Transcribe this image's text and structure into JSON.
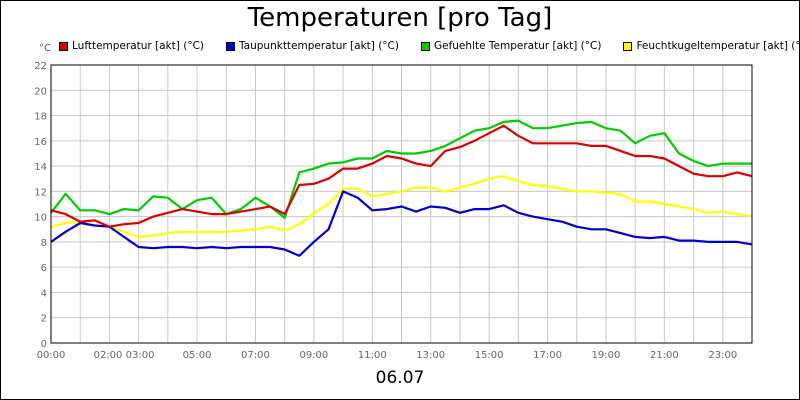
{
  "chart_data": {
    "type": "line",
    "title": "Temperaturen [pro Tag]",
    "unit": "°C",
    "xlabel": "06.07",
    "ylim": [
      0,
      22
    ],
    "y_ticks": [
      0,
      2,
      4,
      6,
      8,
      10,
      12,
      14,
      16,
      18,
      20,
      22
    ],
    "xlim_hours": [
      0,
      24
    ],
    "x_ticks": [
      "00:00",
      "02:00",
      "03:00",
      "05:00",
      "07:00",
      "09:00",
      "11:00",
      "13:00",
      "15:00",
      "17:00",
      "19:00",
      "21:00",
      "23:00"
    ],
    "grid": true,
    "legend_position": "top",
    "series": [
      {
        "name": "Lufttemperatur [akt] (°C)",
        "color": "#dd0000",
        "x": [
          0,
          0.5,
          1,
          1.5,
          2,
          2.5,
          3,
          3.5,
          4,
          4.5,
          5,
          5.5,
          6,
          6.5,
          7,
          7.5,
          8,
          8.5,
          9,
          9.5,
          10,
          10.5,
          11,
          11.5,
          12,
          12.5,
          13,
          13.5,
          14,
          14.5,
          15,
          15.5,
          16,
          16.5,
          17,
          17.5,
          18,
          18.5,
          19,
          19.5,
          20,
          20.5,
          21,
          21.5,
          22,
          22.5,
          23,
          23.5,
          24
        ],
        "values": [
          10.5,
          10.2,
          9.6,
          9.7,
          9.2,
          9.4,
          9.5,
          10.0,
          10.3,
          10.6,
          10.4,
          10.2,
          10.2,
          10.4,
          10.6,
          10.8,
          10.2,
          12.5,
          12.6,
          13.0,
          13.8,
          13.8,
          14.2,
          14.8,
          14.6,
          14.2,
          14.0,
          15.2,
          15.5,
          16.0,
          16.6,
          17.2,
          16.4,
          15.8,
          15.8,
          15.8,
          15.8,
          15.6,
          15.6,
          15.2,
          14.8,
          14.8,
          14.6,
          14.0,
          13.4,
          13.2,
          13.2,
          13.5,
          13.2
        ]
      },
      {
        "name": "Taupunkttemperatur [akt] (°C)",
        "color": "#0000cc",
        "x": [
          0,
          0.5,
          1,
          1.5,
          2,
          2.5,
          3,
          3.5,
          4,
          4.5,
          5,
          5.5,
          6,
          6.5,
          7,
          7.5,
          8,
          8.5,
          9,
          9.5,
          10,
          10.5,
          11,
          11.5,
          12,
          12.5,
          13,
          13.5,
          14,
          14.5,
          15,
          15.5,
          16,
          16.5,
          17,
          17.5,
          18,
          18.5,
          19,
          19.5,
          20,
          20.5,
          21,
          21.5,
          22,
          22.5,
          23,
          23.5,
          24
        ],
        "values": [
          8.0,
          8.8,
          9.5,
          9.3,
          9.2,
          8.4,
          7.6,
          7.5,
          7.6,
          7.6,
          7.5,
          7.6,
          7.5,
          7.6,
          7.6,
          7.6,
          7.4,
          6.9,
          8.0,
          9.0,
          12.0,
          11.5,
          10.5,
          10.6,
          10.8,
          10.4,
          10.8,
          10.7,
          10.3,
          10.6,
          10.6,
          10.9,
          10.3,
          10.0,
          9.8,
          9.6,
          9.2,
          9.0,
          9.0,
          8.7,
          8.4,
          8.3,
          8.4,
          8.1,
          8.1,
          8.0,
          8.0,
          8.0,
          7.8
        ]
      },
      {
        "name": "Gefuehlte Temperatur [akt] (°C)",
        "color": "#00cc00",
        "x": [
          0,
          0.5,
          1,
          1.5,
          2,
          2.5,
          3,
          3.5,
          4,
          4.5,
          5,
          5.5,
          6,
          6.5,
          7,
          7.5,
          8,
          8.5,
          9,
          9.5,
          10,
          10.5,
          11,
          11.5,
          12,
          12.5,
          13,
          13.5,
          14,
          14.5,
          15,
          15.5,
          16,
          16.5,
          17,
          17.5,
          18,
          18.5,
          19,
          19.5,
          20,
          20.5,
          21,
          21.5,
          22,
          22.5,
          23,
          23.5,
          24
        ],
        "values": [
          10.3,
          11.8,
          10.5,
          10.5,
          10.2,
          10.6,
          10.5,
          11.6,
          11.5,
          10.6,
          11.3,
          11.5,
          10.2,
          10.6,
          11.5,
          10.8,
          9.9,
          13.5,
          13.8,
          14.2,
          14.3,
          14.6,
          14.6,
          15.2,
          15.0,
          15.0,
          15.2,
          15.6,
          16.2,
          16.8,
          17.0,
          17.5,
          17.6,
          17.0,
          17.0,
          17.2,
          17.4,
          17.5,
          17.0,
          16.8,
          15.8,
          16.4,
          16.6,
          15.0,
          14.4,
          14.0,
          14.2,
          14.2,
          14.2
        ]
      },
      {
        "name": "Feuchtkugeltemperatur [akt] (°C)",
        "color": "#ffff00",
        "x": [
          0,
          0.5,
          1,
          1.5,
          2,
          2.5,
          3,
          3.5,
          4,
          4.5,
          5,
          5.5,
          6,
          6.5,
          7,
          7.5,
          8,
          8.5,
          9,
          9.5,
          10,
          10.5,
          11,
          11.5,
          12,
          12.5,
          13,
          13.5,
          14,
          14.5,
          15,
          15.5,
          16,
          16.5,
          17,
          17.5,
          18,
          18.5,
          19,
          19.5,
          20,
          20.5,
          21,
          21.5,
          22,
          22.5,
          23,
          23.5,
          24
        ],
        "values": [
          9.2,
          9.5,
          9.6,
          9.3,
          9.2,
          8.8,
          8.4,
          8.5,
          8.7,
          8.8,
          8.8,
          8.8,
          8.8,
          8.9,
          9.0,
          9.2,
          8.9,
          9.4,
          10.3,
          11.0,
          12.2,
          12.2,
          11.6,
          11.8,
          12.0,
          12.3,
          12.3,
          12.0,
          12.3,
          12.6,
          13.0,
          13.2,
          12.8,
          12.5,
          12.4,
          12.2,
          12.0,
          12.0,
          11.9,
          11.8,
          11.2,
          11.2,
          11.0,
          10.8,
          10.6,
          10.3,
          10.4,
          10.2,
          10.0
        ]
      }
    ]
  }
}
